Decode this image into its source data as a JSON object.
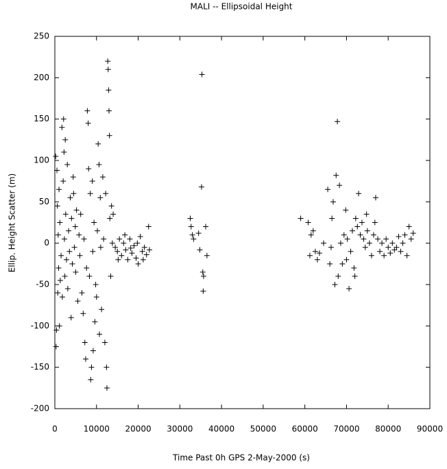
{
  "chart_data": {
    "type": "scatter",
    "title": "MALI -- Ellipsoidal Height",
    "x_label": "Time Past 0h GPS 2-May-2000  (s)",
    "y_label": "Ellip. Height Scatter  (m)",
    "xlim": [
      0,
      90000
    ],
    "xticks": [
      0,
      10000,
      20000,
      30000,
      40000,
      50000,
      60000,
      70000,
      80000,
      90000
    ],
    "ylim": [
      -200,
      250
    ],
    "yticks": [
      -200,
      -150,
      -100,
      -50,
      0,
      50,
      100,
      150,
      200,
      250
    ],
    "color": "#000000",
    "x": [
      200,
      300,
      400,
      500,
      600,
      700,
      800,
      900,
      1000,
      1100,
      1200,
      1300,
      1500,
      1700,
      1800,
      2000,
      2100,
      2200,
      2300,
      2400,
      2500,
      2600,
      2800,
      3000,
      3100,
      3300,
      3500,
      3700,
      3900,
      4000,
      4200,
      4400,
      4500,
      4700,
      4900,
      5000,
      5200,
      5500,
      5800,
      6000,
      6200,
      6500,
      6800,
      7000,
      7200,
      7400,
      7600,
      7800,
      8000,
      8100,
      8300,
      8500,
      8600,
      8800,
      9000,
      9100,
      9200,
      9400,
      9600,
      9800,
      10000,
      10200,
      10400,
      10600,
      10700,
      10900,
      11000,
      11200,
      11500,
      11700,
      12000,
      12200,
      12400,
      12500,
      12700,
      12800,
      12900,
      13000,
      13100,
      13200,
      13400,
      13600,
      13800,
      14000,
      14500,
      15000,
      15500,
      16000,
      16500,
      17000,
      17500,
      18000,
      18500,
      19000,
      19500,
      20000,
      20500,
      21000,
      21500,
      22000,
      22500,
      22700,
      15200,
      16800,
      18200,
      19800,
      21200,
      32500,
      32700,
      33000,
      33300,
      34500,
      34800,
      35200,
      35300,
      35500,
      35700,
      35600,
      36200,
      36500,
      59000,
      60800,
      61200,
      61500,
      62000,
      62500,
      63000,
      63500,
      64500,
      65500,
      66000,
      66300,
      66500,
      66800,
      67200,
      67500,
      67800,
      68000,
      68300,
      68600,
      69000,
      69400,
      69800,
      70200,
      70600,
      71000,
      71400,
      71800,
      72200,
      72600,
      72900,
      73300,
      73700,
      74100,
      74500,
      75000,
      75500,
      76000,
      76500,
      77000,
      77500,
      78000,
      78500,
      79000,
      79500,
      80000,
      80500,
      81000,
      81500,
      82000,
      82500,
      83000,
      83500,
      84000,
      84500,
      85000,
      85500,
      86000,
      72000,
      74800,
      76800,
      70000
    ],
    "values": [
      105,
      -125,
      -105,
      88,
      45,
      -60,
      10,
      -30,
      65,
      -100,
      25,
      -45,
      -15,
      140,
      -65,
      75,
      150,
      110,
      5,
      -40,
      125,
      35,
      -20,
      95,
      -55,
      15,
      -10,
      55,
      -90,
      30,
      -25,
      80,
      60,
      -5,
      20,
      -35,
      40,
      -70,
      10,
      -15,
      35,
      -60,
      -85,
      5,
      -120,
      -140,
      -30,
      160,
      145,
      90,
      -40,
      60,
      -165,
      -150,
      75,
      -10,
      -130,
      25,
      -95,
      -50,
      -65,
      15,
      120,
      95,
      -110,
      55,
      -5,
      -80,
      80,
      5,
      -120,
      60,
      -150,
      -175,
      220,
      210,
      185,
      160,
      130,
      30,
      -40,
      45,
      0,
      35,
      -5,
      -10,
      5,
      -15,
      0,
      -8,
      -20,
      5,
      -12,
      -3,
      -18,
      -25,
      8,
      -10,
      -5,
      -14,
      20,
      -8,
      -20,
      10,
      -6,
      0,
      -20,
      30,
      20,
      10,
      5,
      12,
      -8,
      68,
      204,
      -35,
      -40,
      -58,
      20,
      -15,
      30,
      25,
      -15,
      10,
      15,
      -10,
      -20,
      -12,
      0,
      65,
      -25,
      -5,
      30,
      50,
      -50,
      82,
      147,
      -40,
      70,
      0,
      -25,
      10,
      40,
      5,
      -55,
      -10,
      15,
      -30,
      30,
      20,
      60,
      10,
      25,
      5,
      -5,
      15,
      0,
      -15,
      10,
      55,
      5,
      -10,
      0,
      -15,
      5,
      -5,
      -12,
      0,
      -8,
      -5,
      8,
      -10,
      0,
      10,
      -15,
      20,
      5,
      12,
      -40,
      35,
      25,
      -20
    ]
  }
}
